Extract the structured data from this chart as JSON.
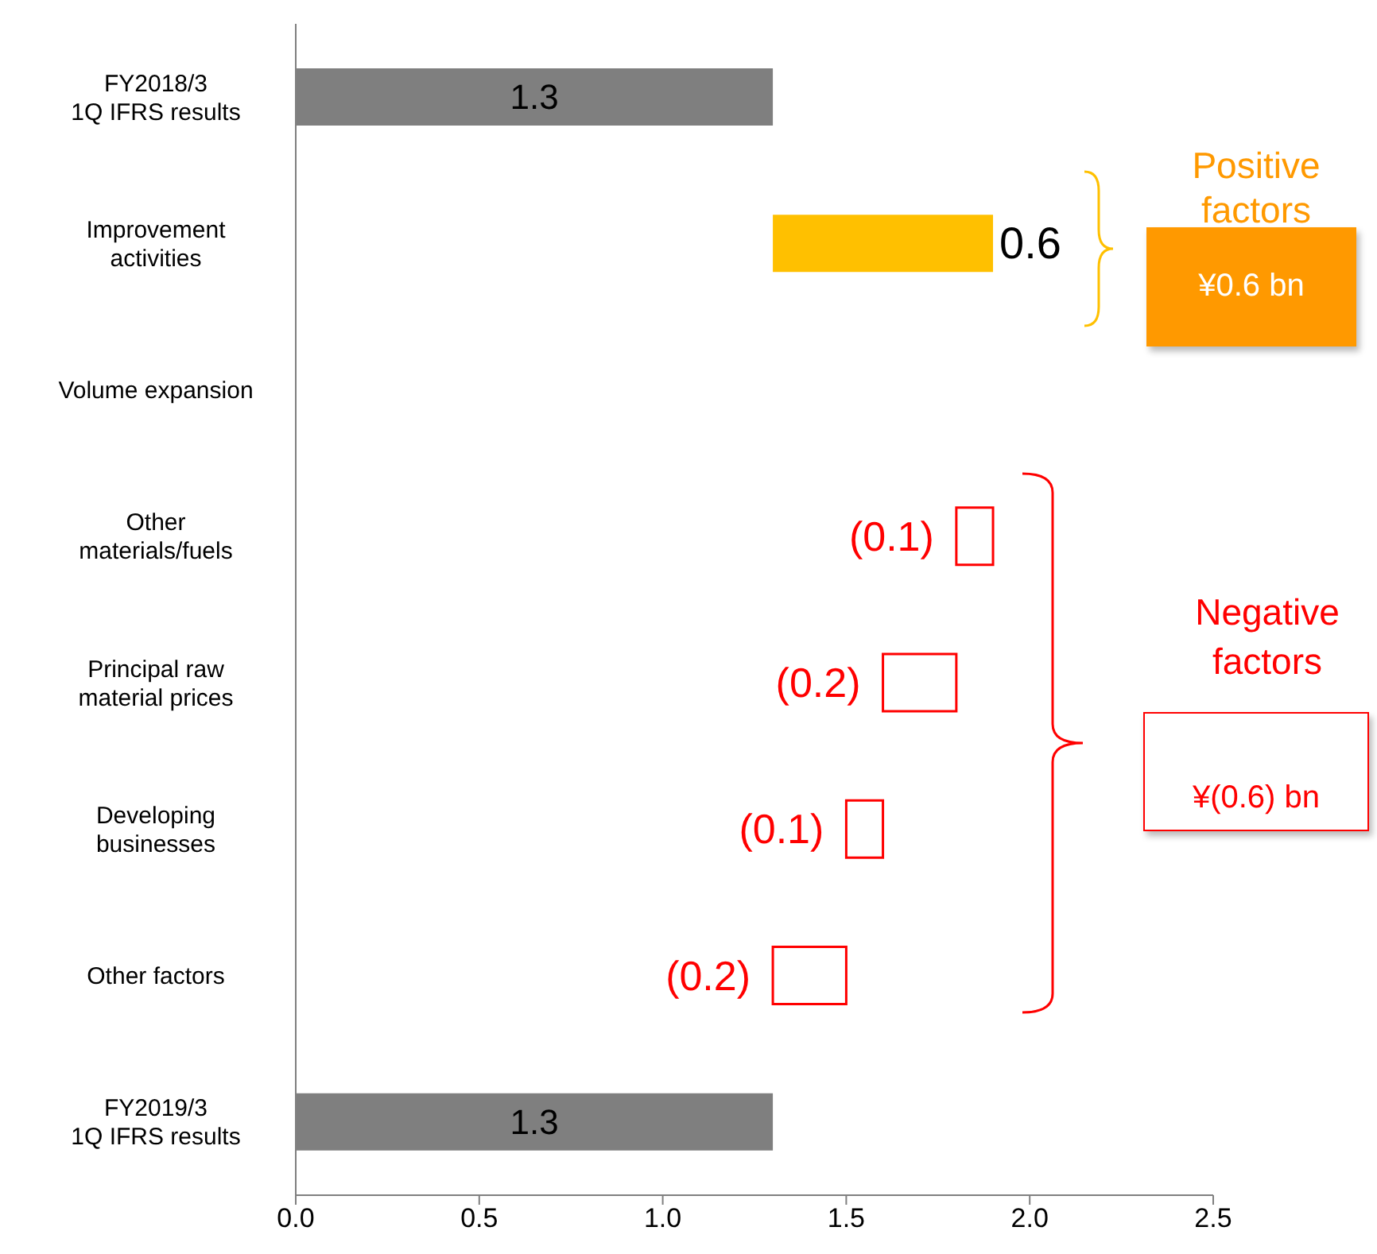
{
  "chart_data": {
    "type": "bar",
    "orientation": "horizontal",
    "categories": [
      "FY2018/3\n1Q IFRS results",
      "Improvement\nactivities",
      "Volume expansion",
      "Other\nmaterials/fuels",
      "Principal raw\nmaterial prices",
      "Developing\nbusinesses",
      "Other factors",
      "FY2019/3\n1Q IFRS results"
    ],
    "values": [
      1.3,
      0.6,
      null,
      -0.1,
      -0.2,
      -0.1,
      -0.2,
      1.3
    ],
    "base": [
      0,
      1.3,
      null,
      1.9,
      1.8,
      1.6,
      1.5,
      0
    ],
    "colors": [
      "#7f7f7f",
      "#ffc000",
      null,
      "#ff0000",
      "#ff0000",
      "#ff0000",
      "#ff0000",
      "#7f7f7f"
    ],
    "value_labels": [
      "1.3",
      "0.6",
      null,
      "(0.1)",
      "(0.2)",
      "(0.1)",
      "(0.2)",
      "1.3"
    ],
    "xlim": [
      0,
      2.5
    ],
    "xticks": [
      {
        "value": 0,
        "label": "0.0"
      },
      0.5,
      {
        "value": 1,
        "label": "1.0"
      },
      1.5,
      {
        "value": 2,
        "label": "2.0"
      },
      2.5
    ],
    "annotations": [
      "Positive factors",
      "¥0.6 bn",
      "Negative factors",
      "¥(0.6) bn"
    ],
    "grid": false,
    "legend": false
  }
}
